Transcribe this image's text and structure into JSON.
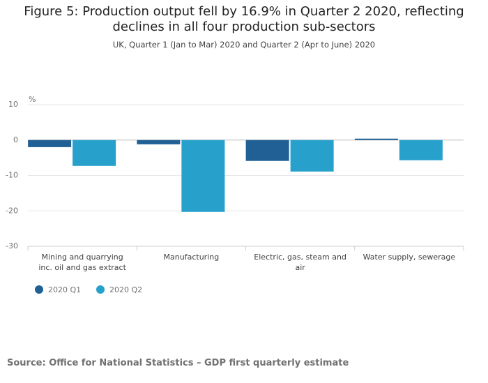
{
  "chart_data": {
    "type": "bar",
    "title": "Figure 5: Production output fell by 16.9% in Quarter 2 2020, reflecting declines in all four production sub-sectors",
    "subtitle": "UK, Quarter 1 (Jan to Mar) 2020 and Quarter 2 (Apr to June) 2020",
    "y_label": "%",
    "categories": [
      "Mining and quarrying inc. oil and gas extract",
      "Manufacturing",
      "Electric, gas, steam and air",
      "Water supply, sewerage"
    ],
    "series": [
      {
        "name": "2020 Q1",
        "color": "#206095",
        "values": [
          -2.0,
          -1.2,
          -5.9,
          0.4
        ]
      },
      {
        "name": "2020 Q2",
        "color": "#27a0cc",
        "values": [
          -7.3,
          -20.3,
          -8.9,
          -5.7
        ]
      }
    ],
    "ylim": [
      -30,
      10
    ],
    "yticks": [
      -30,
      -20,
      -10,
      0,
      10
    ],
    "grid": true,
    "source": "Source: Office for National Statistics – GDP first quarterly estimate"
  }
}
